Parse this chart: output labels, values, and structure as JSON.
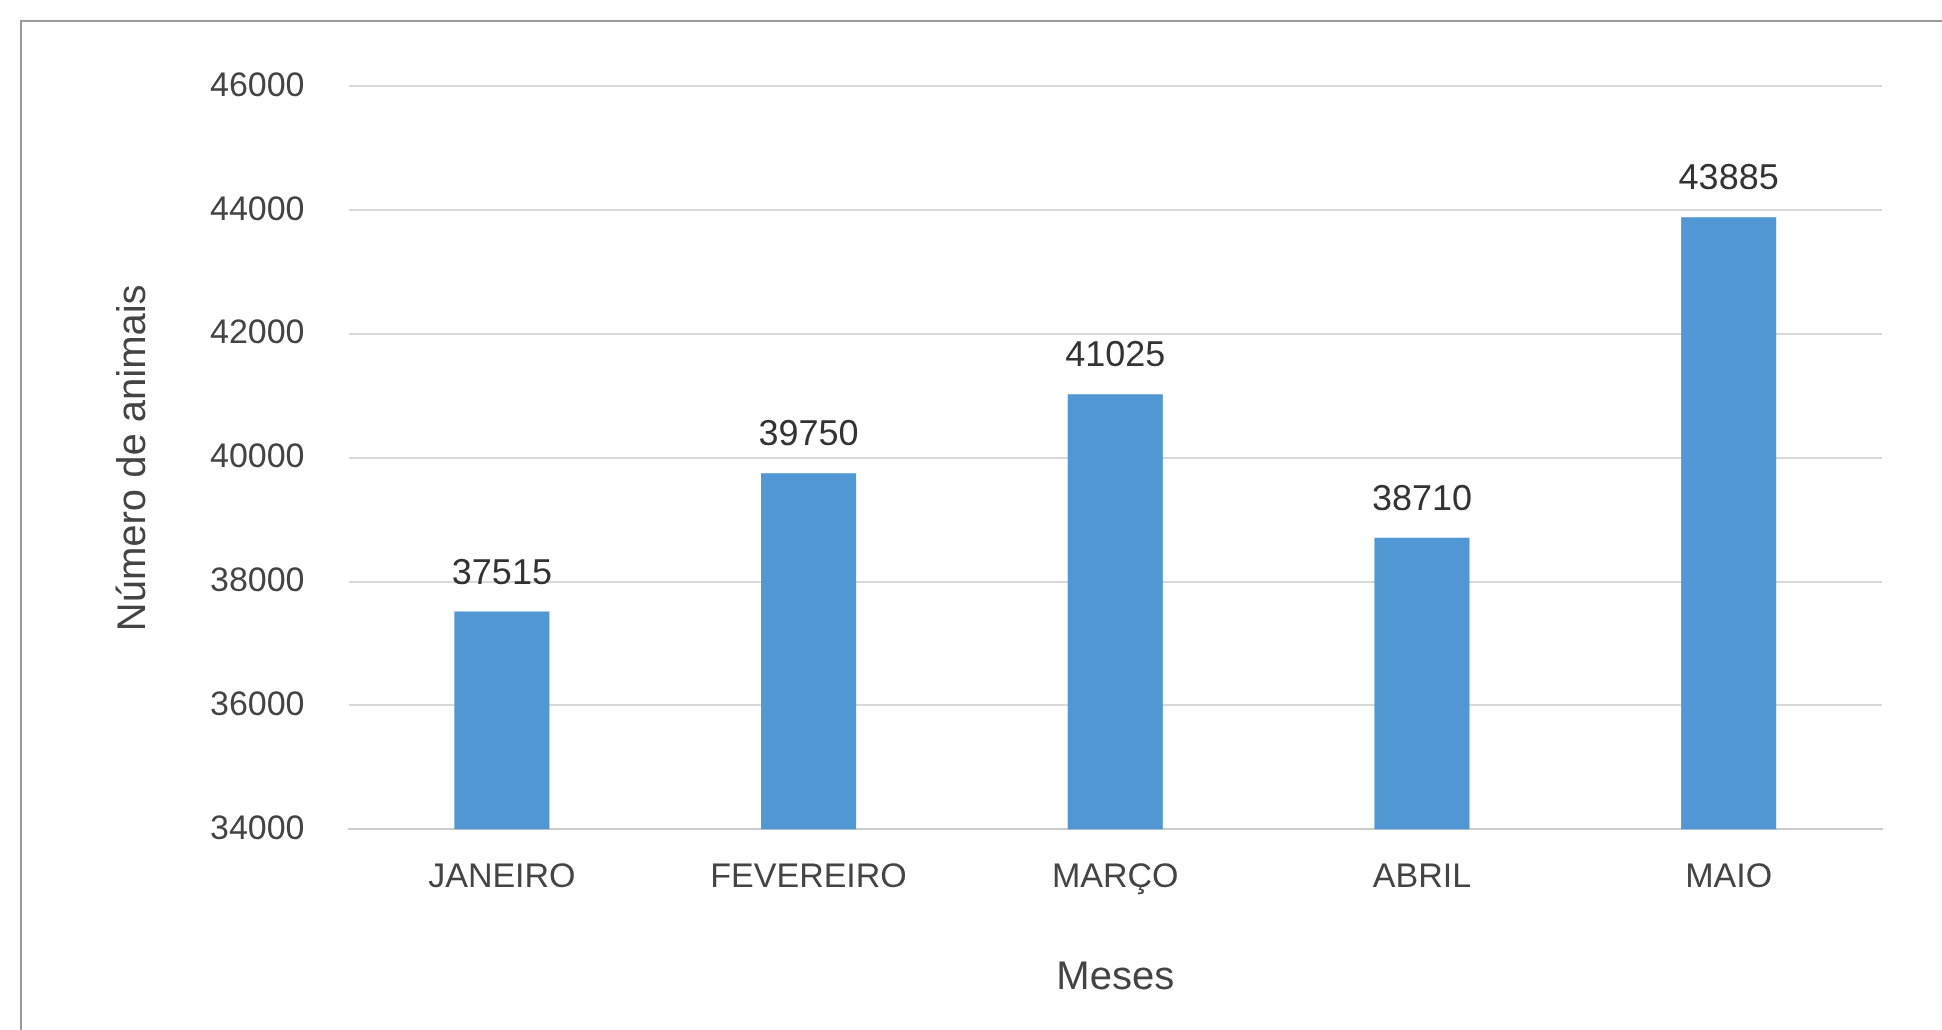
{
  "chart_data": {
    "type": "bar",
    "xlabel": "Meses",
    "ylabel": "Número de animais",
    "categories": [
      "JANEIRO",
      "FEVEREIRO",
      "MARÇO",
      "ABRIL",
      "MAIO"
    ],
    "values": [
      37515,
      39750,
      41025,
      38710,
      43885
    ],
    "color": "#5197d3",
    "ylim": [
      34000,
      46000
    ],
    "yticks": [
      34000,
      36000,
      38000,
      40000,
      42000,
      44000,
      46000
    ],
    "grid": "y",
    "data_labels": true
  }
}
